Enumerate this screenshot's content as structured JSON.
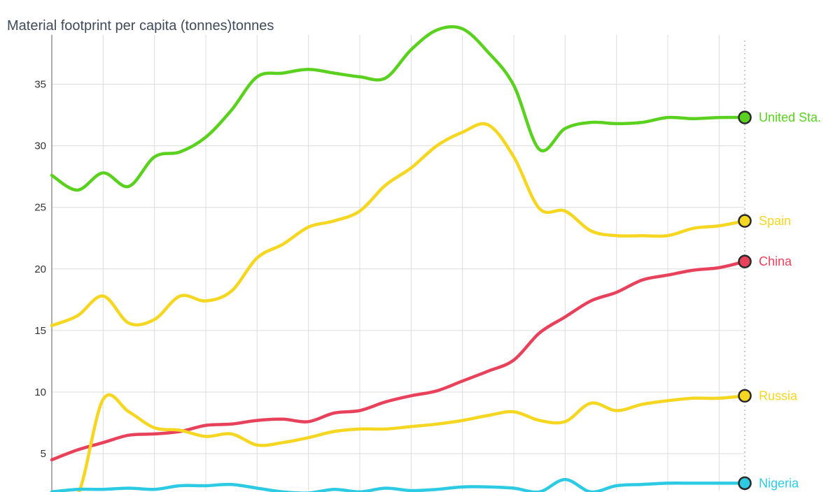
{
  "chart_data": {
    "type": "line",
    "title": "Material footprint per capita (tonnes)tonnes",
    "xlabel": "",
    "ylabel": "",
    "ylim": [
      2,
      39
    ],
    "yticks": [
      5,
      10,
      15,
      20,
      25,
      30,
      35
    ],
    "grid": true,
    "legend": "end-of-line labels",
    "x": [
      0,
      0.5,
      1,
      1.5,
      2,
      2.5,
      3,
      3.5,
      4,
      4.5,
      5,
      5.5,
      6,
      6.5,
      7,
      7.5,
      8,
      8.5,
      9,
      9.5,
      10,
      10.5,
      11,
      11.5,
      12,
      12.5,
      13,
      13.5
    ],
    "series": [
      {
        "name": "United Sta.",
        "color": "#5bd11f",
        "values": [
          27.6,
          26.4,
          27.8,
          26.7,
          29.1,
          29.5,
          30.7,
          32.9,
          35.6,
          35.9,
          36.2,
          35.9,
          35.6,
          35.5,
          37.8,
          39.4,
          39.5,
          37.6,
          34.9,
          29.7,
          31.4,
          31.9,
          31.8,
          31.9,
          32.3,
          32.2,
          32.3,
          32.3
        ]
      },
      {
        "name": "Spain",
        "color": "#f5d620",
        "values": [
          15.4,
          16.2,
          17.8,
          15.6,
          15.9,
          17.8,
          17.4,
          18.2,
          20.9,
          22.0,
          23.4,
          23.9,
          24.7,
          26.8,
          28.2,
          30.0,
          31.1,
          31.7,
          29.1,
          24.9,
          24.7,
          23.1,
          22.7,
          22.7,
          22.7,
          23.3,
          23.5,
          23.9
        ]
      },
      {
        "name": "China",
        "color": "#e8415b",
        "values": [
          4.5,
          5.3,
          5.9,
          6.5,
          6.6,
          6.8,
          7.3,
          7.4,
          7.7,
          7.8,
          7.6,
          8.3,
          8.5,
          9.2,
          9.7,
          10.1,
          10.9,
          11.7,
          12.6,
          14.8,
          16.1,
          17.4,
          18.1,
          19.1,
          19.5,
          19.9,
          20.1,
          20.6
        ]
      },
      {
        "name": "Russia",
        "color": "#f5d620",
        "values": [
          1.9,
          1.6,
          9.4,
          8.4,
          7.1,
          6.9,
          6.4,
          6.6,
          5.7,
          5.9,
          6.3,
          6.8,
          7.0,
          7.0,
          7.2,
          7.4,
          7.7,
          8.1,
          8.4,
          7.7,
          7.6,
          9.1,
          8.5,
          9.0,
          9.3,
          9.5,
          9.5,
          9.7
        ]
      },
      {
        "name": "Nigeria",
        "color": "#2ccbe3",
        "values": [
          1.9,
          2.1,
          2.1,
          2.2,
          2.1,
          2.4,
          2.4,
          2.5,
          2.2,
          1.9,
          1.8,
          2.1,
          1.9,
          2.2,
          2.0,
          2.1,
          2.3,
          2.3,
          2.2,
          1.9,
          2.9,
          1.9,
          2.4,
          2.5,
          2.6,
          2.6,
          2.6,
          2.6
        ]
      }
    ]
  }
}
